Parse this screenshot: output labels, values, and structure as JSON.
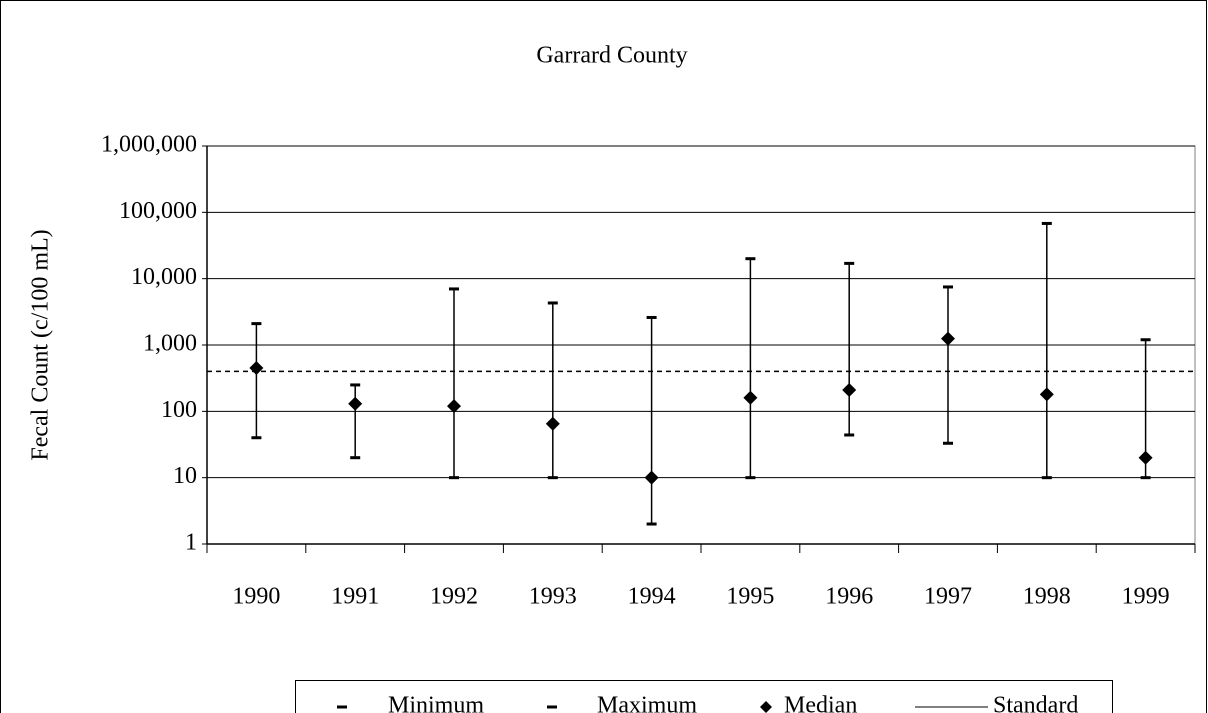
{
  "chart_data": {
    "type": "range",
    "title": "Garrard County",
    "y_label": "Fecal Count (c/100 mL)",
    "log_y": true,
    "grid": true,
    "legend": "bottom",
    "categories": [
      "1990",
      "1991",
      "1992",
      "1993",
      "1994",
      "1995",
      "1996",
      "1997",
      "1998",
      "1999"
    ],
    "series": [
      {
        "name": "Minimum",
        "color": "#000000",
        "values": [
          40,
          20,
          10,
          10,
          2,
          10,
          44,
          33,
          10,
          10
        ]
      },
      {
        "name": "Maximum",
        "color": "#000000",
        "values": [
          2100,
          250,
          7000,
          4300,
          2600,
          20000,
          17000,
          7500,
          68000,
          1200
        ]
      },
      {
        "name": "Median",
        "color": "#000000",
        "values": [
          450,
          130,
          120,
          65,
          10,
          160,
          210,
          1250,
          180,
          20
        ]
      }
    ],
    "reference_line": {
      "name": "Standard",
      "color": "#000000",
      "value": 400
    },
    "ylim": [
      1,
      1000000
    ],
    "yticks": [
      1,
      10,
      100,
      {
        "value": 1000,
        "label": "1,000"
      },
      {
        "value": 10000,
        "label": "10,000"
      },
      {
        "value": 100000,
        "label": "100,000"
      },
      {
        "value": 1000000,
        "label": "1,000,000"
      }
    ]
  }
}
